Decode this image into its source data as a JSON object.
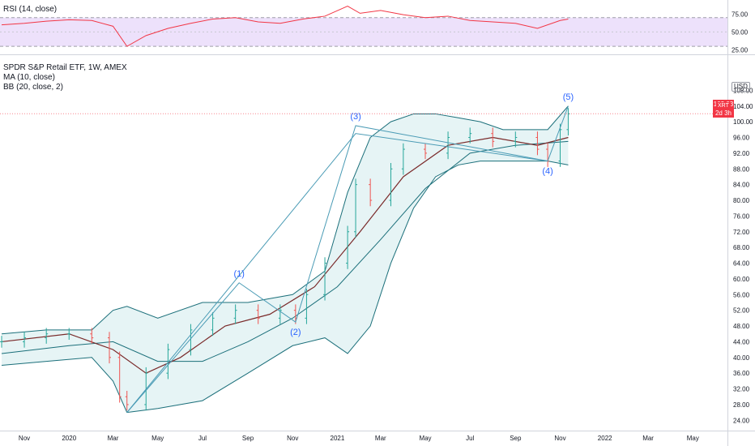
{
  "legend": {
    "rsi": "RSI (14, close)",
    "title": "SPDR S&P Retail ETF, 1W, AMEX",
    "ma": "MA (10, close)",
    "bb": "BB (20, close, 2)"
  },
  "currency": "USD",
  "last_price": {
    "ticker": "XRT",
    "price": "102.03",
    "countdown": "2d 3h",
    "value": 102.03
  },
  "colors": {
    "up": "#26a69a",
    "down": "#ef5350",
    "rsi_line": "#f23645",
    "rsi_band_fill": "#ede1fb",
    "bb_fill": "#e6f4f5",
    "bb_line": "#1b6f7a",
    "ma_line": "#7a2a2a",
    "wave_line": "#4a9bb5",
    "wave_label": "#2962ff"
  },
  "chart_data": [
    {
      "type": "line",
      "name": "rsi",
      "yaxis": {
        "ticks": [
          75,
          50,
          25
        ],
        "ylim": [
          20,
          90
        ]
      },
      "bands": [
        70,
        30
      ],
      "x": [
        "2019-10-01",
        "2019-11-01",
        "2019-12-01",
        "2020-01-01",
        "2020-02-01",
        "2020-03-01",
        "2020-03-20",
        "2020-04-15",
        "2020-05-15",
        "2020-06-15",
        "2020-07-15",
        "2020-08-15",
        "2020-09-15",
        "2020-10-15",
        "2020-11-15",
        "2020-12-15",
        "2021-01-15",
        "2021-02-01",
        "2021-03-01",
        "2021-04-01",
        "2021-05-01",
        "2021-06-01",
        "2021-07-01",
        "2021-08-01",
        "2021-09-01",
        "2021-10-01",
        "2021-11-01",
        "2021-11-12"
      ],
      "values": [
        60,
        62,
        65,
        67,
        66,
        58,
        30,
        45,
        55,
        62,
        68,
        70,
        64,
        62,
        68,
        72,
        86,
        76,
        80,
        74,
        70,
        72,
        66,
        64,
        62,
        55,
        66,
        68
      ]
    },
    {
      "type": "bar",
      "name": "price",
      "yaxis": {
        "ticks": [
          108,
          104,
          100,
          96,
          92,
          88,
          84,
          80,
          76,
          72,
          68,
          64,
          60,
          56,
          52,
          48,
          44,
          40,
          36,
          32,
          28,
          24
        ],
        "ylim": [
          22,
          112
        ]
      },
      "xaxis": {
        "ticks": [
          "Nov",
          "2020",
          "Mar",
          "May",
          "Jul",
          "Sep",
          "Nov",
          "2021",
          "Mar",
          "May",
          "Jul",
          "Sep",
          "Nov",
          "2022",
          "Mar",
          "May"
        ]
      },
      "x": [
        "2019-10-01",
        "2019-11-01",
        "2019-12-01",
        "2020-01-01",
        "2020-02-01",
        "2020-02-25",
        "2020-03-10",
        "2020-03-20",
        "2020-04-15",
        "2020-05-15",
        "2020-06-15",
        "2020-07-15",
        "2020-08-15",
        "2020-09-15",
        "2020-10-15",
        "2020-11-05",
        "2020-11-20",
        "2020-12-15",
        "2021-01-15",
        "2021-01-26",
        "2021-02-15",
        "2021-03-15",
        "2021-04-01",
        "2021-05-01",
        "2021-06-01",
        "2021-07-01",
        "2021-08-01",
        "2021-09-01",
        "2021-10-01",
        "2021-10-15",
        "2021-11-01",
        "2021-11-12"
      ],
      "values": [
        44,
        45,
        46,
        46,
        45,
        40,
        30,
        28,
        36,
        42,
        47,
        50,
        52,
        50,
        52,
        50,
        56,
        64,
        72,
        84,
        80,
        88,
        93,
        92,
        96,
        97,
        95,
        96,
        93,
        90,
        98,
        102
      ]
    },
    {
      "type": "line",
      "name": "ma",
      "x": [
        "2019-10-01",
        "2020-01-01",
        "2020-03-01",
        "2020-04-15",
        "2020-06-01",
        "2020-08-01",
        "2020-10-01",
        "2020-12-01",
        "2021-02-01",
        "2021-04-01",
        "2021-06-01",
        "2021-08-01",
        "2021-10-01",
        "2021-11-12"
      ],
      "values": [
        44,
        46,
        42,
        36,
        40,
        48,
        51,
        58,
        72,
        86,
        94,
        96,
        94,
        96
      ]
    },
    {
      "type": "line",
      "name": "bb_basis",
      "x": [
        "2019-10-01",
        "2020-01-01",
        "2020-03-01",
        "2020-05-01",
        "2020-07-01",
        "2020-09-01",
        "2020-11-01",
        "2021-01-01",
        "2021-03-01",
        "2021-05-01",
        "2021-07-01",
        "2021-09-01",
        "2021-11-12"
      ],
      "values": [
        41,
        43,
        44,
        39,
        39,
        44,
        50,
        58,
        70,
        83,
        92,
        94,
        95
      ]
    },
    {
      "type": "area",
      "name": "bb_band",
      "x": [
        "2019-10-01",
        "2019-12-01",
        "2020-02-01",
        "2020-03-01",
        "2020-03-20",
        "2020-05-01",
        "2020-07-01",
        "2020-09-01",
        "2020-11-01",
        "2020-12-15",
        "2021-01-15",
        "2021-02-15",
        "2021-03-15",
        "2021-04-15",
        "2021-05-15",
        "2021-06-15",
        "2021-07-15",
        "2021-08-15",
        "2021-09-15",
        "2021-10-15",
        "2021-11-12"
      ],
      "upper": [
        46,
        47,
        47,
        52,
        53,
        50,
        54,
        54,
        56,
        62,
        82,
        96,
        100,
        102,
        102,
        101,
        100,
        98,
        98,
        98,
        104
      ],
      "lower": [
        38,
        39,
        40,
        34,
        26,
        27,
        29,
        36,
        43,
        45,
        41,
        48,
        64,
        78,
        86,
        89,
        90,
        90,
        90,
        90,
        89
      ]
    },
    {
      "type": "line",
      "name": "elliott_wave",
      "x": [
        "2020-03-20",
        "2020-08-20",
        "2020-11-05",
        "2021-01-26",
        "2021-10-15",
        "2021-11-12"
      ],
      "values": [
        26,
        59,
        49,
        99,
        90,
        104
      ],
      "labels": [
        "",
        "(1)",
        "(2)",
        "(3)",
        "(4)",
        "(5)"
      ]
    },
    {
      "type": "line",
      "name": "trendline",
      "x": [
        "2020-03-20",
        "2021-01-26",
        "2021-10-15"
      ],
      "values": [
        26,
        97,
        90
      ]
    }
  ]
}
